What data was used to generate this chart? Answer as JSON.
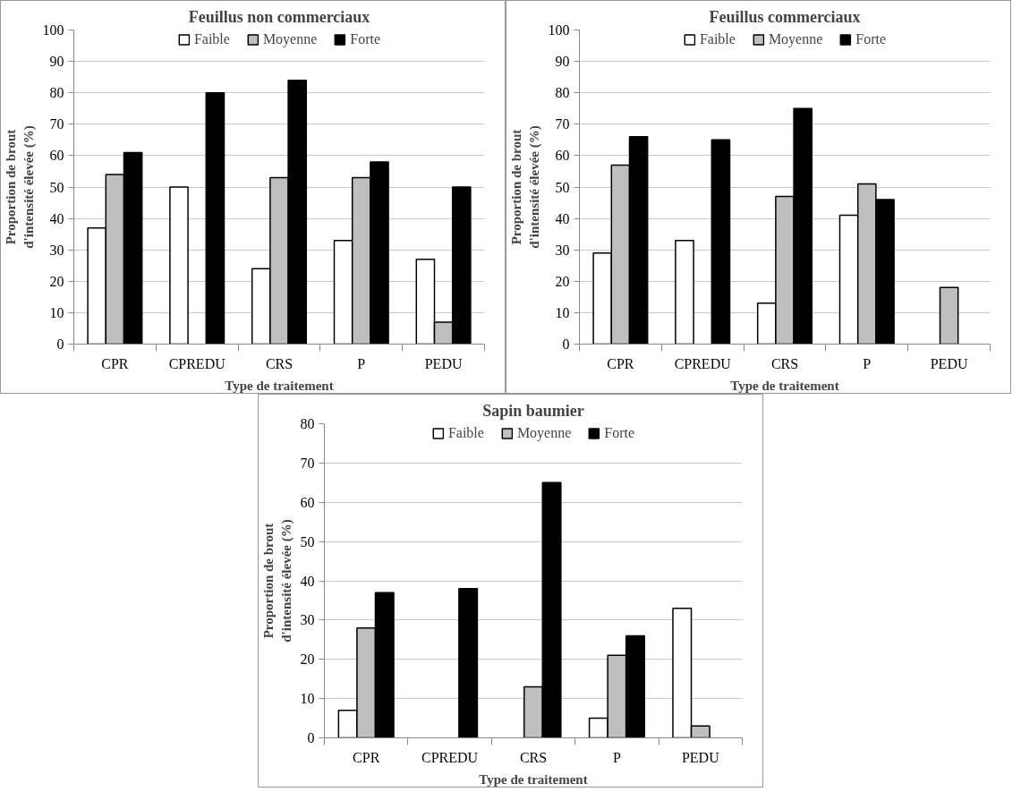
{
  "chart_data": [
    {
      "type": "bar",
      "title": "Feuillus non commerciaux",
      "xlabel": "Type de traitement",
      "ylabel": "Proportion de brout d'intensité élevée (%)",
      "categories": [
        "CPR",
        "CPREDU",
        "CRS",
        "P",
        "PEDU"
      ],
      "ylim": [
        0,
        100
      ],
      "yticks": [
        0,
        10,
        20,
        30,
        40,
        50,
        60,
        70,
        80,
        90,
        100
      ],
      "grid": "y",
      "legend": "top",
      "series": [
        {
          "name": "Faible",
          "color": "#ffffff",
          "values": [
            37,
            50,
            24,
            33,
            27
          ]
        },
        {
          "name": "Moyenne",
          "color": "#bfbfbf",
          "values": [
            54,
            null,
            53,
            53,
            7
          ]
        },
        {
          "name": "Forte",
          "color": "#000000",
          "values": [
            61,
            80,
            84,
            58,
            50
          ]
        }
      ]
    },
    {
      "type": "bar",
      "title": "Feuillus commerciaux",
      "xlabel": "Type de traitement",
      "ylabel": "Proportion de brout d'intensité élevée (%)",
      "categories": [
        "CPR",
        "CPREDU",
        "CRS",
        "P",
        "PEDU"
      ],
      "ylim": [
        0,
        100
      ],
      "yticks": [
        0,
        10,
        20,
        30,
        40,
        50,
        60,
        70,
        80,
        90,
        100
      ],
      "grid": "y",
      "legend": "top",
      "series": [
        {
          "name": "Faible",
          "color": "#ffffff",
          "values": [
            29,
            33,
            13,
            41,
            null
          ]
        },
        {
          "name": "Moyenne",
          "color": "#bfbfbf",
          "values": [
            57,
            null,
            47,
            51,
            18
          ]
        },
        {
          "name": "Forte",
          "color": "#000000",
          "values": [
            66,
            65,
            75,
            46,
            null
          ]
        }
      ]
    },
    {
      "type": "bar",
      "title": "Sapin baumier",
      "xlabel": "Type de traitement",
      "ylabel": "Proportion de brout d'intensité élevée (%)",
      "categories": [
        "CPR",
        "CPREDU",
        "CRS",
        "P",
        "PEDU"
      ],
      "ylim": [
        0,
        80
      ],
      "yticks": [
        0,
        10,
        20,
        30,
        40,
        50,
        60,
        70,
        80
      ],
      "grid": "y",
      "legend": "top",
      "series": [
        {
          "name": "Faible",
          "color": "#ffffff",
          "values": [
            7,
            null,
            null,
            5,
            33
          ]
        },
        {
          "name": "Moyenne",
          "color": "#bfbfbf",
          "values": [
            28,
            null,
            13,
            21,
            3
          ]
        },
        {
          "name": "Forte",
          "color": "#000000",
          "values": [
            37,
            38,
            65,
            26,
            null
          ]
        }
      ]
    }
  ]
}
